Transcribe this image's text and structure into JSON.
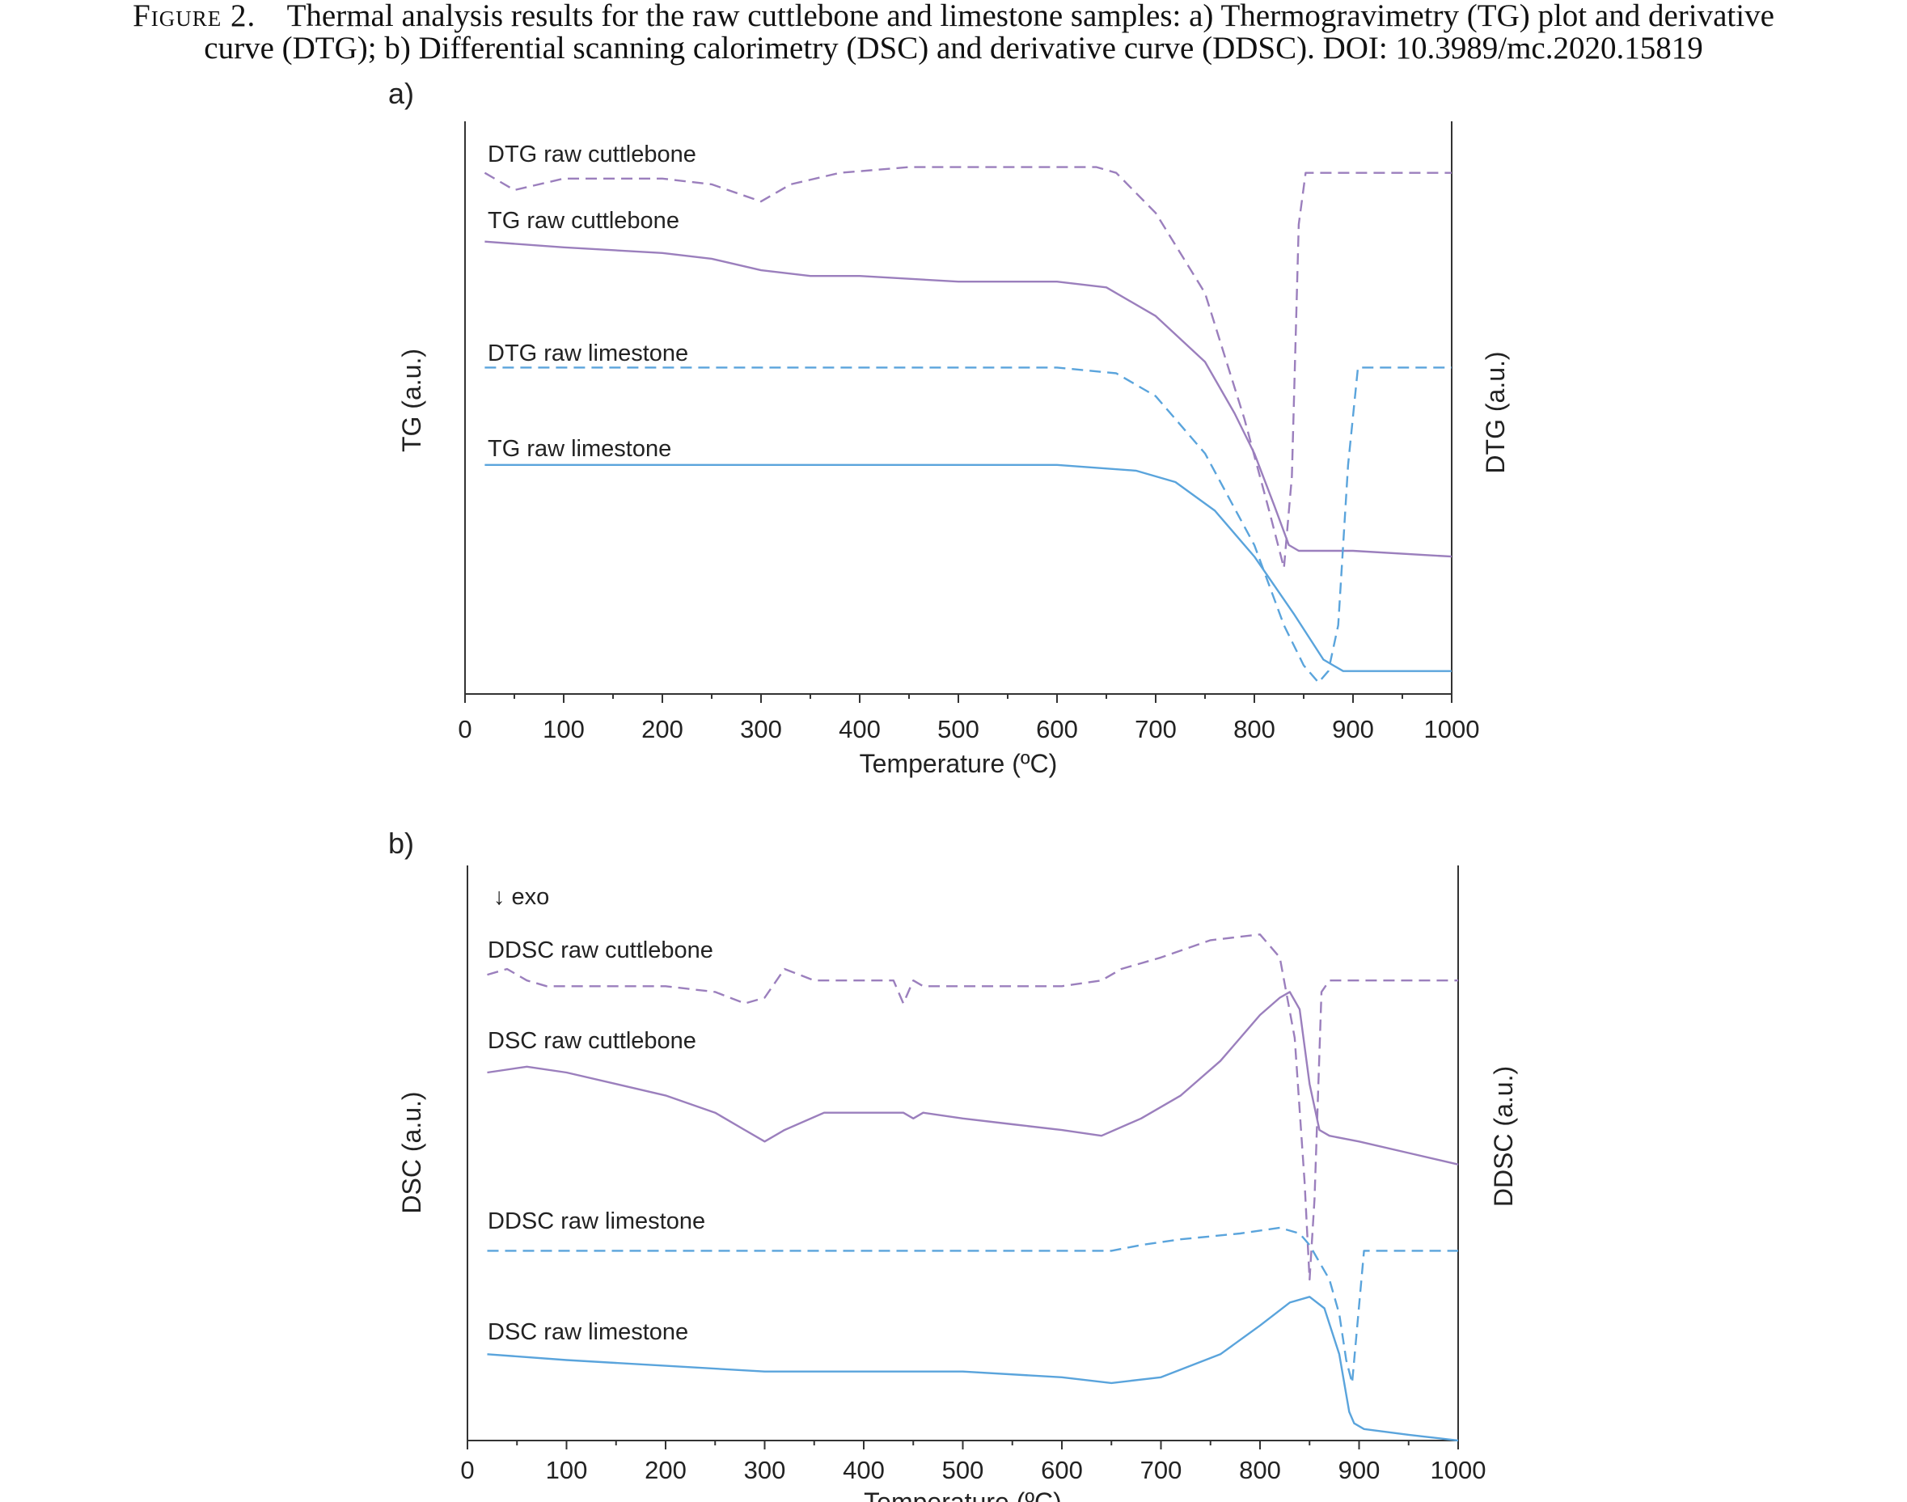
{
  "caption": {
    "figure_label": "Figure 2.",
    "line1": "Thermal analysis results for the raw cuttlebone and limestone samples: a) Thermogravimetry (TG) plot and derivative",
    "line2": "curve (DTG); b) Differential scanning calorimetry (DSC) and derivative curve (DDSC). DOI: 10.3989/mc.2020.15819"
  },
  "colors": {
    "cuttlebone": "#9b7fbd",
    "limestone": "#5aa4dc",
    "axis": "#333333"
  },
  "chart_data": [
    {
      "panel": "a)",
      "type": "line",
      "xlabel": "Temperature  (ºC)",
      "ylabel": "TG (a.u.)",
      "ylabel_right": "DTG (a.u.)",
      "xlim": [
        0,
        1000
      ],
      "xticks": [
        "0",
        "100",
        "200",
        "300",
        "400",
        "500",
        "600",
        "700",
        "800",
        "900",
        "1000"
      ],
      "ylim": [
        0,
        100
      ],
      "grid": false,
      "series": [
        {
          "name": "DTG raw cuttlebone",
          "color": "#9b7fbd",
          "dashed": true,
          "x": [
            20,
            50,
            100,
            150,
            200,
            250,
            300,
            330,
            380,
            450,
            500,
            550,
            600,
            640,
            660,
            700,
            750,
            790,
            815,
            830,
            838,
            845,
            852,
            860,
            900,
            950,
            1000
          ],
          "y": [
            91,
            88,
            90,
            90,
            90,
            89,
            86,
            89,
            91,
            92,
            92,
            92,
            92,
            92,
            91,
            84,
            70,
            48,
            32,
            22,
            38,
            82,
            91,
            91,
            91,
            91,
            91
          ]
        },
        {
          "name": "TG raw cuttlebone",
          "color": "#9b7fbd",
          "dashed": false,
          "x": [
            20,
            100,
            200,
            250,
            300,
            350,
            400,
            500,
            600,
            650,
            700,
            750,
            780,
            800,
            820,
            835,
            845,
            900,
            1000
          ],
          "y": [
            79,
            78,
            77,
            76,
            74,
            73,
            73,
            72,
            72,
            71,
            66,
            58,
            49,
            42,
            33,
            26,
            25,
            25,
            24
          ]
        },
        {
          "name": "DTG raw limestone",
          "color": "#5aa4dc",
          "dashed": true,
          "x": [
            20,
            100,
            200,
            300,
            400,
            500,
            600,
            660,
            700,
            750,
            800,
            830,
            850,
            865,
            875,
            885,
            895,
            905,
            920,
            950,
            1000
          ],
          "y": [
            57,
            57,
            57,
            57,
            57,
            57,
            57,
            56,
            52,
            42,
            26,
            12,
            5,
            2,
            4,
            12,
            40,
            57,
            57,
            57,
            57
          ]
        },
        {
          "name": "TG raw limestone",
          "color": "#5aa4dc",
          "dashed": false,
          "x": [
            20,
            100,
            200,
            300,
            400,
            500,
            600,
            680,
            720,
            760,
            800,
            840,
            870,
            890,
            900,
            950,
            1000
          ],
          "y": [
            40,
            40,
            40,
            40,
            40,
            40,
            40,
            39,
            37,
            32,
            24,
            14,
            6,
            4,
            4,
            4,
            4
          ]
        }
      ],
      "annotations": []
    },
    {
      "panel": "b)",
      "type": "line",
      "xlabel": "Temperature  (ºC)",
      "ylabel": "DSC (a.u.)",
      "ylabel_right": "DDSC (a.u.)",
      "xlim": [
        0,
        1000
      ],
      "xticks": [
        "0",
        "100",
        "200",
        "300",
        "400",
        "500",
        "600",
        "700",
        "800",
        "900",
        "1000"
      ],
      "ylim": [
        0,
        100
      ],
      "grid": false,
      "series": [
        {
          "name": "DDSC raw cuttlebone",
          "color": "#9b7fbd",
          "dashed": true,
          "x": [
            20,
            40,
            60,
            80,
            100,
            200,
            250,
            280,
            300,
            320,
            350,
            400,
            430,
            440,
            450,
            460,
            500,
            600,
            640,
            660,
            700,
            750,
            800,
            820,
            835,
            845,
            850,
            855,
            862,
            870,
            900,
            1000
          ],
          "y": [
            81,
            82,
            80,
            79,
            79,
            79,
            78,
            76,
            77,
            82,
            80,
            80,
            80,
            76,
            80,
            79,
            79,
            79,
            80,
            82,
            84,
            87,
            88,
            84,
            70,
            45,
            28,
            42,
            78,
            80,
            80,
            80
          ]
        },
        {
          "name": "DSC raw cuttlebone",
          "color": "#9b7fbd",
          "dashed": false,
          "x": [
            20,
            60,
            100,
            150,
            200,
            250,
            280,
            300,
            320,
            360,
            400,
            440,
            450,
            460,
            500,
            550,
            600,
            640,
            680,
            720,
            760,
            800,
            820,
            830,
            840,
            850,
            860,
            870,
            900,
            950,
            1000
          ],
          "y": [
            64,
            65,
            64,
            62,
            60,
            57,
            54,
            52,
            54,
            57,
            57,
            57,
            56,
            57,
            56,
            55,
            54,
            53,
            56,
            60,
            66,
            74,
            77,
            78,
            75,
            62,
            54,
            53,
            52,
            50,
            48
          ]
        },
        {
          "name": "DDSC raw limestone",
          "color": "#5aa4dc",
          "dashed": true,
          "x": [
            20,
            100,
            200,
            300,
            400,
            500,
            600,
            650,
            680,
            720,
            780,
            820,
            840,
            850,
            860,
            870,
            880,
            887,
            893,
            905,
            920,
            1000
          ],
          "y": [
            33,
            33,
            33,
            33,
            33,
            33,
            33,
            33,
            34,
            35,
            36,
            37,
            36,
            34,
            31,
            28,
            22,
            14,
            10,
            33,
            33,
            33
          ]
        },
        {
          "name": "DSC raw limestone",
          "color": "#5aa4dc",
          "dashed": false,
          "x": [
            20,
            100,
            200,
            300,
            400,
            500,
            600,
            650,
            700,
            760,
            800,
            830,
            850,
            865,
            880,
            890,
            895,
            905,
            950,
            1000
          ],
          "y": [
            15,
            14,
            13,
            12,
            12,
            12,
            11,
            10,
            11,
            15,
            20,
            24,
            25,
            23,
            15,
            5,
            3,
            2,
            1,
            0
          ]
        }
      ],
      "annotations": [
        "↓ exo"
      ]
    }
  ]
}
